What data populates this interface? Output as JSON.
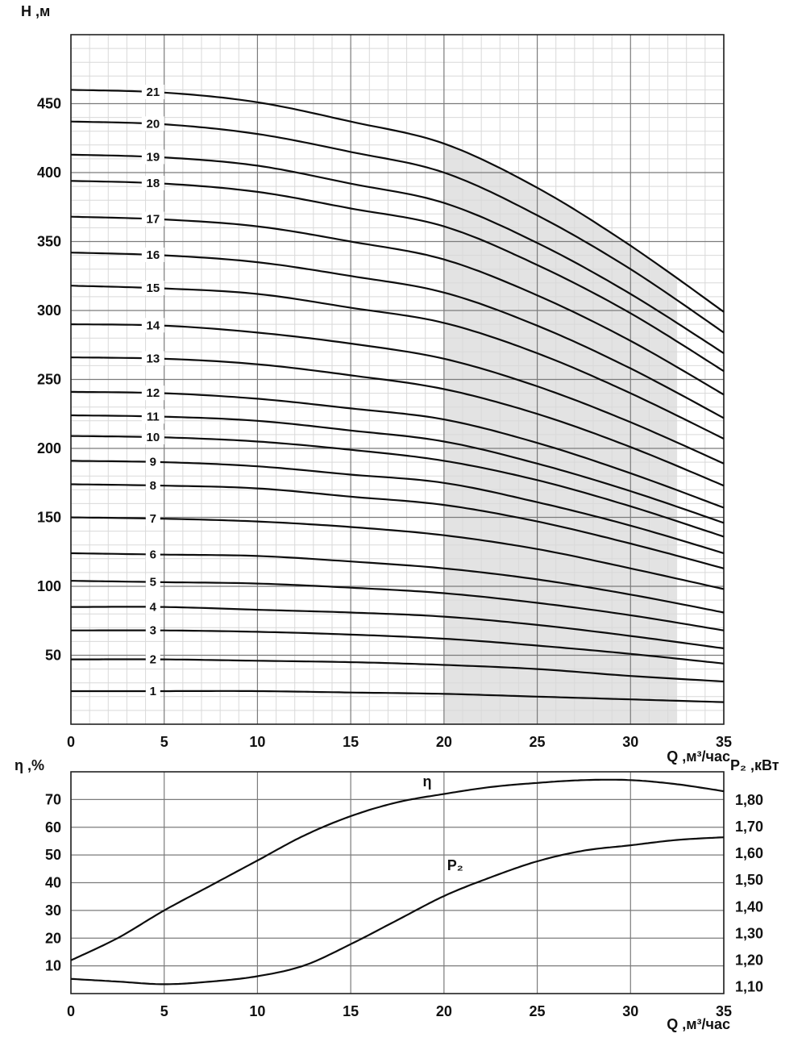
{
  "chart_data": [
    {
      "type": "line",
      "id": "head-flow-curves",
      "title": "",
      "xlabel": "Q ,м³/час",
      "ylabel": "Н ,м",
      "xlim": [
        0,
        35
      ],
      "ylim": [
        0,
        500
      ],
      "x_major_ticks": [
        0,
        5,
        10,
        15,
        20,
        25,
        30,
        35
      ],
      "x_minor_step": 1,
      "y_major_ticks": [
        50,
        100,
        150,
        200,
        250,
        300,
        350,
        400,
        450
      ],
      "y_minor_step": 10,
      "grid": true,
      "series_label_x": 4.4,
      "band": {
        "x_from": 20,
        "x_to": 32.5,
        "top": "topmost-series",
        "color": "#e3e3e3"
      },
      "x": [
        0,
        5,
        10,
        15,
        20,
        25,
        30,
        35
      ],
      "series": [
        {
          "name": "1",
          "values": [
            24,
            24,
            24,
            23,
            22,
            20,
            18,
            16
          ]
        },
        {
          "name": "2",
          "values": [
            47,
            47,
            46,
            45,
            43,
            40,
            35,
            31
          ]
        },
        {
          "name": "3",
          "values": [
            68,
            68,
            67,
            65,
            62,
            57,
            51,
            44
          ]
        },
        {
          "name": "4",
          "values": [
            85,
            85,
            83,
            81,
            78,
            72,
            64,
            55
          ]
        },
        {
          "name": "5",
          "values": [
            104,
            103,
            102,
            99,
            95,
            88,
            79,
            68
          ]
        },
        {
          "name": "6",
          "values": [
            124,
            123,
            122,
            118,
            113,
            105,
            94,
            81
          ]
        },
        {
          "name": "7",
          "values": [
            150,
            149,
            147,
            143,
            137,
            127,
            113,
            98
          ]
        },
        {
          "name": "8",
          "values": [
            174,
            173,
            171,
            165,
            159,
            147,
            131,
            113
          ]
        },
        {
          "name": "9",
          "values": [
            191,
            190,
            187,
            181,
            175,
            161,
            144,
            124
          ]
        },
        {
          "name": "10",
          "values": [
            209,
            208,
            205,
            199,
            191,
            177,
            158,
            136
          ]
        },
        {
          "name": "11",
          "values": [
            224,
            223,
            220,
            213,
            205,
            189,
            169,
            146
          ]
        },
        {
          "name": "12",
          "values": [
            241,
            240,
            236,
            229,
            221,
            204,
            182,
            157
          ]
        },
        {
          "name": "13",
          "values": [
            266,
            265,
            261,
            253,
            243,
            225,
            201,
            173
          ]
        },
        {
          "name": "14",
          "values": [
            290,
            289,
            284,
            276,
            265,
            245,
            219,
            189
          ]
        },
        {
          "name": "15",
          "values": [
            318,
            316,
            312,
            302,
            291,
            269,
            240,
            207
          ]
        },
        {
          "name": "16",
          "values": [
            342,
            340,
            335,
            325,
            313,
            289,
            258,
            222
          ]
        },
        {
          "name": "17",
          "values": [
            368,
            366,
            361,
            350,
            337,
            311,
            278,
            239
          ]
        },
        {
          "name": "18",
          "values": [
            394,
            392,
            386,
            374,
            361,
            333,
            298,
            256
          ]
        },
        {
          "name": "19",
          "values": [
            413,
            411,
            405,
            392,
            378,
            349,
            312,
            269
          ]
        },
        {
          "name": "20",
          "values": [
            437,
            435,
            428,
            415,
            400,
            369,
            330,
            284
          ]
        },
        {
          "name": "21",
          "values": [
            460,
            458,
            451,
            437,
            421,
            389,
            347,
            299
          ]
        }
      ]
    },
    {
      "type": "line",
      "id": "efficiency-power",
      "title": "",
      "xlabel": "Q ,м³/час",
      "ylabel_left": "η ,%",
      "ylabel_right": "Р₂ ,кВт",
      "xlim": [
        0,
        35
      ],
      "ylim_left": [
        0,
        80
      ],
      "ylim_right": [
        1.075,
        1.905
      ],
      "x_major_ticks": [
        0,
        5,
        10,
        15,
        20,
        25,
        30,
        35
      ],
      "y_left_ticks": [
        10,
        20,
        30,
        40,
        50,
        60,
        70
      ],
      "y_right_ticks": [
        {
          "value": 1.1,
          "label": "1,10"
        },
        {
          "value": 1.2,
          "label": "1,20"
        },
        {
          "value": 1.3,
          "label": "1,30"
        },
        {
          "value": 1.4,
          "label": "1,40"
        },
        {
          "value": 1.5,
          "label": "1,50"
        },
        {
          "value": 1.6,
          "label": "1,60"
        },
        {
          "value": 1.7,
          "label": "1,70"
        },
        {
          "value": 1.8,
          "label": "1,80"
        }
      ],
      "x": [
        0,
        2.5,
        5,
        7.5,
        10,
        12.5,
        15,
        17.5,
        20,
        22.5,
        25,
        27.5,
        30,
        32.5,
        35
      ],
      "series": [
        {
          "name": "η",
          "axis": "left",
          "values": [
            12,
            20,
            30,
            39,
            48,
            57,
            64,
            69,
            72,
            74.5,
            76,
            77,
            77,
            75.5,
            73
          ]
        },
        {
          "name": "P₂",
          "axis": "right",
          "values": [
            1.13,
            1.12,
            1.11,
            1.12,
            1.14,
            1.18,
            1.26,
            1.35,
            1.44,
            1.51,
            1.57,
            1.61,
            1.63,
            1.65,
            1.66
          ]
        }
      ],
      "annotations": [
        {
          "text": "η",
          "x": 19.1,
          "y": 76.5,
          "axis": "left"
        },
        {
          "text": "P₂",
          "x": 20.6,
          "y": 1.555,
          "axis": "right"
        }
      ]
    }
  ],
  "colors": {
    "curve": "#0d0d0d",
    "grid_minor": "#d9d9d9",
    "grid_major": "#7b7b7b",
    "border": "#222222",
    "band": "#e3e3e3",
    "background": "#ffffff"
  }
}
